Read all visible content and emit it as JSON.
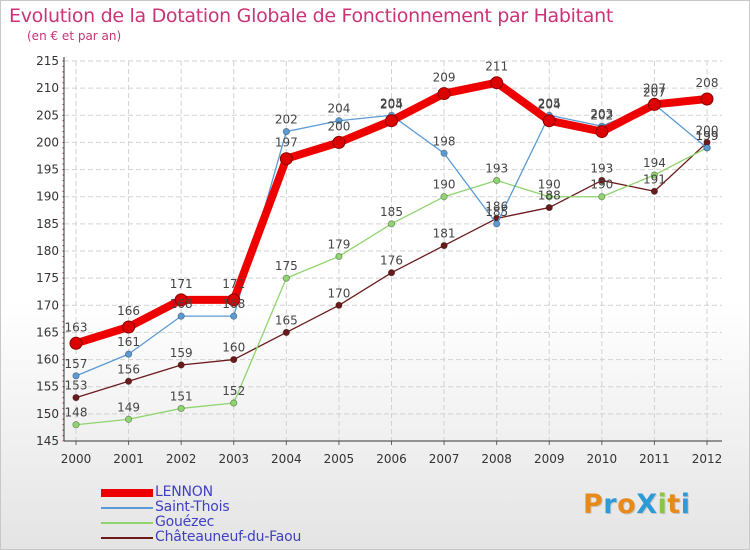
{
  "header": {
    "title": "Evolution de la Dotation Globale de Fonctionnement par Habitant",
    "subtitle": "(en € et par an)"
  },
  "logo": {
    "text": "ProXiti",
    "letters": [
      "P",
      "r",
      "o",
      "X",
      "i",
      "t",
      "i"
    ],
    "colors": [
      "#e8891c",
      "#2e9bd6",
      "#e8891c",
      "#2e9bd6",
      "#8cc63f",
      "#e8891c",
      "#2e9bd6"
    ]
  },
  "chart_data": {
    "type": "line",
    "title": "Evolution de la Dotation Globale de Fonctionnement par Habitant",
    "subtitle": "(en € et par an)",
    "xlabel": "",
    "ylabel": "",
    "ylim": [
      145,
      215
    ],
    "yticks": [
      145,
      150,
      155,
      160,
      165,
      170,
      175,
      180,
      185,
      190,
      195,
      200,
      205,
      210,
      215
    ],
    "grid": true,
    "legend_position": "bottom-left",
    "categories": [
      "2000",
      "2001",
      "2002",
      "2003",
      "2004",
      "2005",
      "2006",
      "2007",
      "2008",
      "2009",
      "2010",
      "2011",
      "2012"
    ],
    "series": [
      {
        "name": "Châteauneuf-du-Faou",
        "color": "#6b1a1a",
        "values": [
          153,
          156,
          159,
          160,
          165,
          170,
          176,
          181,
          186,
          188,
          193,
          191,
          200
        ],
        "labels": [
          "153",
          "156",
          "159",
          "160",
          "165",
          "170",
          "176",
          "181",
          "186",
          "188",
          "193",
          "191",
          "200"
        ]
      },
      {
        "name": "Gouézec",
        "color": "#8fd46e",
        "values": [
          148,
          149,
          151,
          152,
          175,
          179,
          185,
          190,
          193,
          190,
          190,
          194,
          199
        ],
        "labels": [
          "148",
          "149",
          "151",
          "152",
          "175",
          "179",
          "185",
          "190",
          "193",
          "190",
          "190",
          "194",
          "199"
        ]
      },
      {
        "name": "Saint-Thois",
        "color": "#5b9bd5",
        "values": [
          157,
          161,
          168,
          168,
          202,
          204,
          205,
          198,
          185,
          205,
          203,
          207,
          199
        ],
        "labels": [
          "157",
          "161",
          "168",
          "168",
          "202",
          "204",
          "205",
          "198",
          "185",
          "205",
          "203",
          "207",
          "199"
        ]
      },
      {
        "name": "LENNON",
        "color": "#ee0000",
        "values": [
          163,
          166,
          171,
          171,
          197,
          200,
          204,
          209,
          211,
          204,
          202,
          207,
          208
        ],
        "labels": [
          "163",
          "166",
          "171",
          "171",
          "197",
          "200",
          "204",
          "209",
          "211",
          "204",
          "202",
          "207",
          "208"
        ]
      }
    ]
  },
  "legend": [
    {
      "label": "LENNON",
      "color": "#ee0000",
      "thickness": 8
    },
    {
      "label": "Saint-Thois",
      "color": "#5b9bd5",
      "thickness": 2
    },
    {
      "label": "Gouézec",
      "color": "#8fd46e",
      "thickness": 2
    },
    {
      "label": "Châteauneuf-du-Faou",
      "color": "#6b1a1a",
      "thickness": 2
    }
  ]
}
